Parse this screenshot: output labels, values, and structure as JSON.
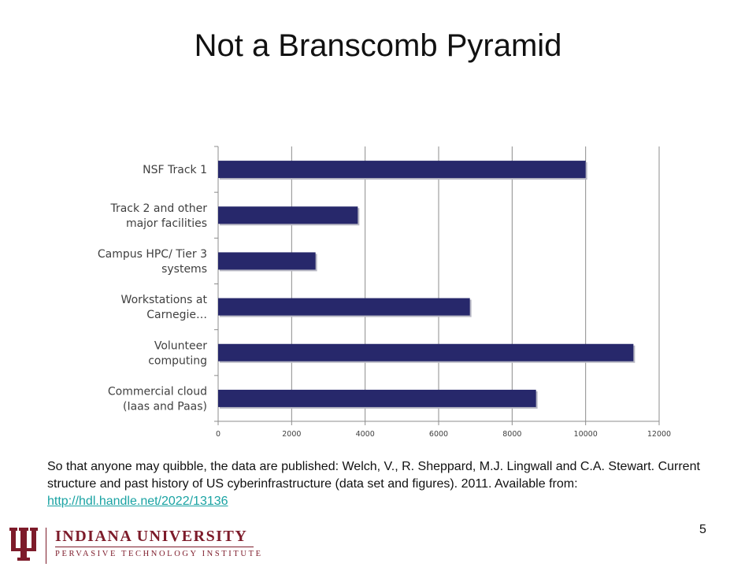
{
  "slide": {
    "title": "Not a Branscomb Pyramid",
    "page_number": "5"
  },
  "chart_data": {
    "type": "bar",
    "orientation": "horizontal",
    "categories": [
      "NSF Track 1",
      "Track 2 and other major facilities",
      "Campus HPC/ Tier 3 systems",
      "Workstations at Carnegie…",
      "Volunteer computing",
      "Commercial cloud (Iaas and Paas)"
    ],
    "category_lines": [
      [
        "NSF Track 1"
      ],
      [
        "Track 2 and other",
        "major facilities"
      ],
      [
        "Campus HPC/ Tier 3",
        "systems"
      ],
      [
        "Workstations at",
        "Carnegie…"
      ],
      [
        "Volunteer",
        "computing"
      ],
      [
        "Commercial cloud",
        "(Iaas and Paas)"
      ]
    ],
    "values": [
      10000,
      3800,
      2650,
      6850,
      11300,
      8650
    ],
    "xlim": [
      0,
      12000
    ],
    "xticks": [
      0,
      2000,
      4000,
      6000,
      8000,
      10000,
      12000
    ],
    "grid": "vertical",
    "bar_color": "#27286b",
    "title": "",
    "xlabel": "",
    "ylabel": ""
  },
  "citation": {
    "text": "So that anyone may quibble, the data are published: Welch, V., R. Sheppard, M.J. Lingwall and C.A. Stewart. Current structure and past history of US cyberinfrastructure (data set and figures). 2011. Available from: ",
    "link": "http://hdl.handle.net/2022/13136"
  },
  "footer": {
    "university": "INDIANA UNIVERSITY",
    "institute": "PERVASIVE TECHNOLOGY INSTITUTE",
    "brand_color": "#7d1b2a"
  }
}
